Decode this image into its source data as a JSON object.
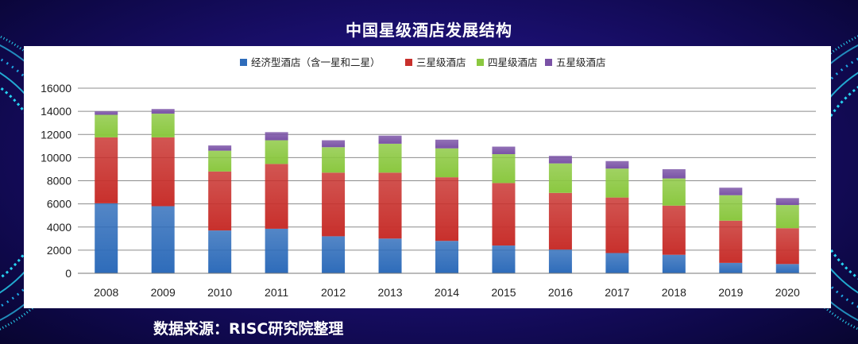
{
  "title": "中国星级酒店发展结构",
  "source_note": "数据来源：RISC研究院整理",
  "colors": {
    "background": "#150c5e",
    "accent_cyan": "#27d3f2",
    "economy": "#2e6cba",
    "three_star": "#c8302c",
    "four_star": "#8bc840",
    "five_star": "#7a52a6"
  },
  "chart_data": {
    "type": "bar",
    "stacked": true,
    "title": "",
    "xlabel": "",
    "ylabel": "",
    "ylim": [
      0,
      16000
    ],
    "yticks": [
      0,
      2000,
      4000,
      6000,
      8000,
      10000,
      12000,
      14000,
      16000
    ],
    "grid": true,
    "legend_position": "top",
    "categories": [
      "2008",
      "2009",
      "2010",
      "2011",
      "2012",
      "2013",
      "2014",
      "2015",
      "2016",
      "2017",
      "2018",
      "2019",
      "2020"
    ],
    "series": [
      {
        "name": "经济型酒店（含一星和二星）",
        "color": "#2e6cba",
        "values": [
          6050,
          5800,
          3700,
          3850,
          3200,
          3000,
          2800,
          2400,
          2050,
          1750,
          1600,
          900,
          800
        ]
      },
      {
        "name": "三星级酒店",
        "color": "#c8302c",
        "values": [
          5700,
          5950,
          5100,
          5600,
          5500,
          5700,
          5500,
          5400,
          4900,
          4800,
          4250,
          3650,
          3100
        ]
      },
      {
        "name": "四星级酒店",
        "color": "#8bc840",
        "values": [
          1950,
          2050,
          1800,
          2050,
          2200,
          2500,
          2500,
          2500,
          2550,
          2500,
          2350,
          2200,
          2000
        ]
      },
      {
        "name": "五星级酒店",
        "color": "#7a52a6",
        "values": [
          300,
          400,
          450,
          700,
          600,
          700,
          750,
          650,
          650,
          650,
          800,
          650,
          600
        ]
      }
    ]
  }
}
